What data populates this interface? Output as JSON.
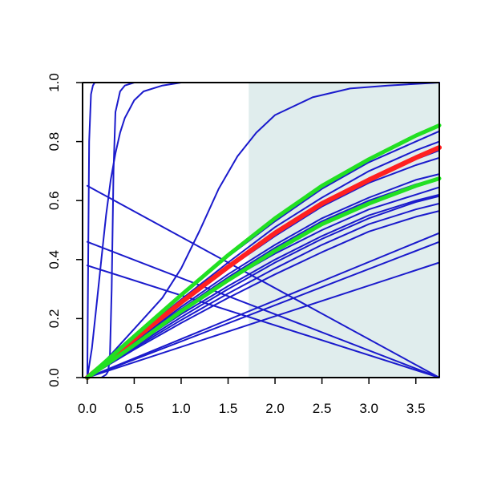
{
  "chart_data": {
    "type": "line",
    "title": "",
    "xlabel": "",
    "ylabel": "",
    "xlim": [
      -0.05,
      3.75
    ],
    "ylim": [
      0,
      1
    ],
    "x_ticks": [
      0.0,
      0.5,
      1.0,
      1.5,
      2.0,
      2.5,
      3.0,
      3.5
    ],
    "x_tick_labels": [
      "0.0",
      "0.5",
      "1.0",
      "1.5",
      "2.0",
      "2.5",
      "3.0",
      "3.5"
    ],
    "y_ticks": [
      0.0,
      0.2,
      0.4,
      0.6,
      0.8,
      1.0
    ],
    "y_tick_labels": [
      "0.0",
      "0.2",
      "0.4",
      "0.6",
      "0.8",
      "1.0"
    ],
    "grid": false,
    "legend": "none",
    "shaded_region": {
      "x_from": 1.72,
      "x_to": 3.75,
      "color": "#e0eded"
    },
    "colors": {
      "blue": "#1a1acc",
      "red": "#ff2020",
      "green": "#22e022",
      "axis": "#000000"
    },
    "series": [
      {
        "color": "blue",
        "width": 2,
        "x": [
          0,
          0.01,
          0.02,
          0.04,
          0.06,
          0.08,
          0.1,
          3.75
        ],
        "y": [
          0,
          0.4,
          0.8,
          0.96,
          0.99,
          1.0,
          1.0,
          1.0
        ]
      },
      {
        "color": "blue",
        "width": 2,
        "x": [
          0,
          0.05,
          0.1,
          0.15,
          0.2,
          0.25,
          0.3,
          0.35,
          0.4,
          0.45,
          0.5,
          0.6,
          0.8,
          1.0,
          3.75
        ],
        "y": [
          0,
          0.1,
          0.25,
          0.4,
          0.55,
          0.67,
          0.76,
          0.83,
          0.88,
          0.91,
          0.94,
          0.97,
          0.99,
          1.0,
          1.0
        ]
      },
      {
        "color": "blue",
        "width": 2,
        "x": [
          0,
          0.05,
          0.1,
          0.15,
          0.2,
          0.22,
          0.24,
          0.26,
          0.28,
          0.3,
          0.35,
          0.4,
          0.5,
          3.75
        ],
        "y": [
          0,
          0.0,
          0.0,
          0.0,
          0.01,
          0.02,
          0.06,
          0.3,
          0.7,
          0.9,
          0.97,
          0.99,
          1.0,
          1.0
        ]
      },
      {
        "color": "blue",
        "width": 2,
        "x": [
          0,
          0.2,
          0.4,
          0.6,
          0.8,
          1.0,
          1.2,
          1.4,
          1.6,
          1.8,
          2.0,
          2.4,
          2.8,
          3.2,
          3.75
        ],
        "y": [
          0,
          0.06,
          0.13,
          0.2,
          0.27,
          0.37,
          0.5,
          0.64,
          0.75,
          0.83,
          0.89,
          0.95,
          0.98,
          0.99,
          1.0
        ]
      },
      {
        "color": "blue",
        "width": 2,
        "x": [
          0,
          3.75
        ],
        "y": [
          0.65,
          0.0
        ]
      },
      {
        "color": "blue",
        "width": 2,
        "x": [
          0,
          3.75
        ],
        "y": [
          0.46,
          0.0
        ]
      },
      {
        "color": "blue",
        "width": 2,
        "x": [
          0,
          3.75
        ],
        "y": [
          0.38,
          0.0
        ]
      },
      {
        "color": "blue",
        "width": 2,
        "x": [
          0,
          3.75
        ],
        "y": [
          0,
          0.39
        ]
      },
      {
        "color": "blue",
        "width": 2,
        "x": [
          0,
          3.75
        ],
        "y": [
          0,
          0.46
        ]
      },
      {
        "color": "blue",
        "width": 2,
        "x": [
          0,
          3.75
        ],
        "y": [
          0,
          0.49
        ]
      },
      {
        "color": "blue",
        "width": 2,
        "x": [
          0,
          0.5,
          1.0,
          1.5,
          2.0,
          2.5,
          3.0,
          3.5,
          3.75
        ],
        "y": [
          0,
          0.115,
          0.225,
          0.33,
          0.42,
          0.5,
          0.57,
          0.62,
          0.645
        ]
      },
      {
        "color": "blue",
        "width": 2,
        "x": [
          0,
          0.5,
          1.0,
          1.5,
          2.0,
          2.5,
          3.0,
          3.5,
          3.75
        ],
        "y": [
          0,
          0.12,
          0.24,
          0.35,
          0.45,
          0.54,
          0.61,
          0.67,
          0.69
        ]
      },
      {
        "color": "blue",
        "width": 2,
        "x": [
          0,
          0.5,
          1.0,
          1.5,
          2.0,
          2.5,
          3.0,
          3.5,
          3.75
        ],
        "y": [
          0,
          0.11,
          0.215,
          0.31,
          0.4,
          0.48,
          0.55,
          0.6,
          0.62
        ]
      },
      {
        "color": "blue",
        "width": 2,
        "x": [
          0,
          0.5,
          1.0,
          1.5,
          2.0,
          2.5,
          3.0,
          3.5,
          3.75
        ],
        "y": [
          0,
          0.1,
          0.195,
          0.285,
          0.37,
          0.45,
          0.52,
          0.57,
          0.59
        ]
      },
      {
        "color": "blue",
        "width": 2,
        "x": [
          0,
          0.5,
          1.0,
          1.5,
          2.0,
          2.5,
          3.0,
          3.5,
          3.75
        ],
        "y": [
          0,
          0.095,
          0.185,
          0.27,
          0.35,
          0.425,
          0.495,
          0.545,
          0.565
        ]
      },
      {
        "color": "blue",
        "width": 2,
        "x": [
          0,
          0.5,
          1.0,
          1.5,
          2.0,
          2.5,
          3.0,
          3.5,
          3.75
        ],
        "y": [
          0,
          0.125,
          0.25,
          0.37,
          0.48,
          0.58,
          0.66,
          0.72,
          0.745
        ]
      },
      {
        "color": "blue",
        "width": 2,
        "x": [
          0,
          0.5,
          1.0,
          1.5,
          2.0,
          2.5,
          3.0,
          3.5,
          3.75
        ],
        "y": [
          0,
          0.135,
          0.265,
          0.39,
          0.51,
          0.61,
          0.7,
          0.77,
          0.8
        ]
      },
      {
        "color": "blue",
        "width": 2,
        "x": [
          0,
          0.5,
          1.0,
          1.5,
          2.0,
          2.5,
          3.0,
          3.5,
          3.75
        ],
        "y": [
          0,
          0.14,
          0.28,
          0.41,
          0.53,
          0.64,
          0.73,
          0.8,
          0.835
        ]
      },
      {
        "color": "blue",
        "width": 2,
        "x": [
          0,
          0.5,
          1.0,
          1.5,
          2.0,
          2.5,
          3.0,
          3.5,
          3.75
        ],
        "y": [
          0,
          0.105,
          0.205,
          0.3,
          0.39,
          0.47,
          0.54,
          0.595,
          0.615
        ]
      },
      {
        "color": "blue",
        "width": 2,
        "x": [
          0,
          0.5,
          1.0,
          1.5,
          2.0,
          2.5,
          3.0,
          3.5,
          3.75
        ],
        "y": [
          0,
          0.118,
          0.232,
          0.34,
          0.44,
          0.53,
          0.6,
          0.655,
          0.675
        ]
      },
      {
        "color": "blue",
        "width": 2,
        "x": [
          0,
          0.5,
          1.0,
          1.5,
          2.0,
          2.5,
          3.0,
          3.5,
          3.75
        ],
        "y": [
          0,
          0.13,
          0.255,
          0.375,
          0.49,
          0.59,
          0.675,
          0.74,
          0.77
        ]
      },
      {
        "color": "red",
        "width": 6,
        "x": [
          0,
          0.5,
          1.0,
          1.5,
          2.0,
          2.5,
          3.0,
          3.5,
          3.75
        ],
        "y": [
          0,
          0.13,
          0.255,
          0.375,
          0.49,
          0.59,
          0.67,
          0.745,
          0.78
        ]
      },
      {
        "color": "green",
        "width": 5,
        "x": [
          0,
          0.5,
          1.0,
          1.5,
          2.0,
          2.5,
          3.0,
          3.5,
          3.75
        ],
        "y": [
          0,
          0.14,
          0.28,
          0.415,
          0.54,
          0.65,
          0.74,
          0.82,
          0.855
        ]
      },
      {
        "color": "green",
        "width": 5,
        "x": [
          0,
          0.5,
          1.0,
          1.5,
          2.0,
          2.5,
          3.0,
          3.5,
          3.75
        ],
        "y": [
          0,
          0.11,
          0.225,
          0.33,
          0.43,
          0.52,
          0.59,
          0.65,
          0.675
        ]
      }
    ]
  }
}
